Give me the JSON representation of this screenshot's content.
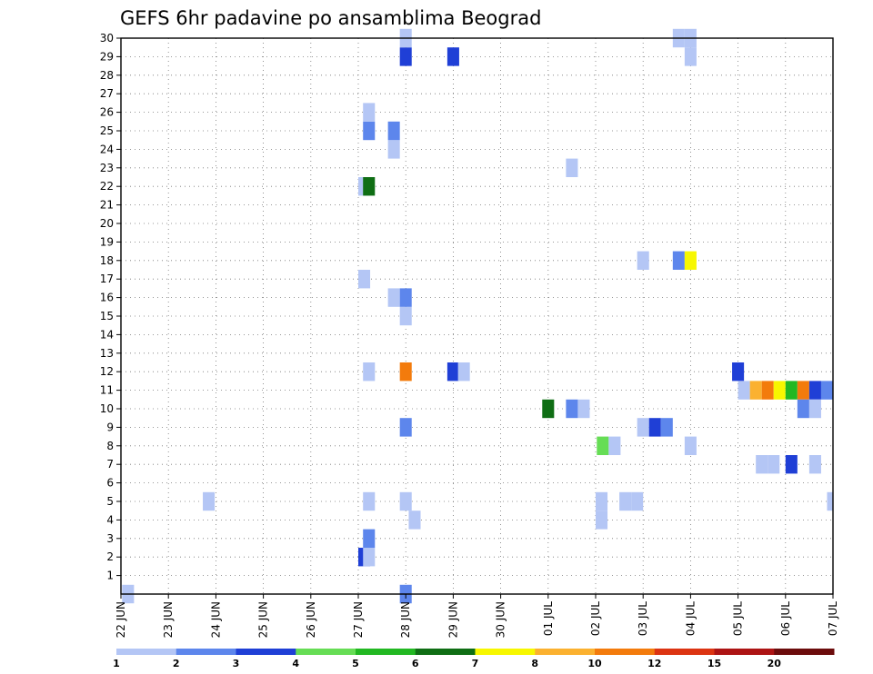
{
  "chart_data": {
    "type": "heatmap",
    "title": "GEFS 6hr padavine po ansamblima Beograd",
    "xlabel": "",
    "ylabel": "",
    "x_tick_labels": [
      "22 JUN",
      "23 JUN",
      "24 JUN",
      "25 JUN",
      "26 JUN",
      "27 JUN",
      "28 JUN",
      "29 JUN",
      "30 JUN",
      "01 JUL",
      "02 JUL",
      "03 JUL",
      "04 JUL",
      "05 JUL",
      "06 JUL",
      "07 JUL"
    ],
    "y_tick_labels": [
      "1",
      "2",
      "3",
      "4",
      "5",
      "6",
      "7",
      "8",
      "9",
      "10",
      "11",
      "12",
      "13",
      "14",
      "15",
      "16",
      "17",
      "18",
      "19",
      "20",
      "21",
      "22",
      "23",
      "24",
      "25",
      "26",
      "27",
      "28",
      "29",
      "30"
    ],
    "ylim": [
      0,
      30
    ],
    "time_step_hours": 6,
    "steps_per_day": 4,
    "grid": "dotted",
    "legend": {
      "position": "bottom",
      "bounds": [
        "1",
        "2",
        "3",
        "4",
        "5",
        "6",
        "7",
        "8",
        "10",
        "12",
        "15",
        "20"
      ],
      "bound_values": [
        1,
        2,
        3,
        4,
        5,
        6,
        7,
        8,
        10,
        12,
        15,
        20
      ],
      "colors": [
        "#b4c6f5",
        "#5d86ec",
        "#1f3fd6",
        "#66dd55",
        "#22b822",
        "#0f6e14",
        "#f7f700",
        "#fbb130",
        "#f37b0c",
        "#dc3412",
        "#ad1414",
        "#6c0c0c"
      ]
    },
    "points": [
      {
        "day": "22 JUN",
        "step": 0.1,
        "member": 0,
        "value": 1.5
      },
      {
        "day": "23 JUN",
        "step": 2.9,
        "member": 5,
        "value": 1.5
      },
      {
        "day": "27 JUN",
        "step": 0.0,
        "member": 2,
        "value": 3.5
      },
      {
        "day": "27 JUN",
        "step": 0.4,
        "member": 2,
        "value": 1.5
      },
      {
        "day": "27 JUN",
        "step": 0.4,
        "member": 3,
        "value": 2.5
      },
      {
        "day": "27 JUN",
        "step": 0.4,
        "member": 5,
        "value": 1.5
      },
      {
        "day": "27 JUN",
        "step": 0.0,
        "member": 17,
        "value": 1.5
      },
      {
        "day": "27 JUN",
        "step": 0.0,
        "member": 22,
        "value": 1.5
      },
      {
        "day": "27 JUN",
        "step": 0.4,
        "member": 22,
        "value": 6.5
      },
      {
        "day": "27 JUN",
        "step": 0.4,
        "member": 25,
        "value": 2.5
      },
      {
        "day": "27 JUN",
        "step": 0.4,
        "member": 26,
        "value": 1.5
      },
      {
        "day": "27 JUN",
        "step": 0.4,
        "member": 12,
        "value": 1.5
      },
      {
        "day": "27 JUN",
        "step": 2.5,
        "member": 16,
        "value": 1.5
      },
      {
        "day": "27 JUN",
        "step": 2.5,
        "member": 24,
        "value": 1.5
      },
      {
        "day": "27 JUN",
        "step": 2.5,
        "member": 25,
        "value": 2.5
      },
      {
        "day": "27 JUN",
        "step": 3.5,
        "member": 0,
        "value": 2.5
      },
      {
        "day": "27 JUN",
        "step": 3.5,
        "member": 5,
        "value": 1.5
      },
      {
        "day": "27 JUN",
        "step": 3.5,
        "member": 9,
        "value": 2.5
      },
      {
        "day": "27 JUN",
        "step": 3.5,
        "member": 12,
        "value": 11.0
      },
      {
        "day": "27 JUN",
        "step": 3.5,
        "member": 15,
        "value": 1.5
      },
      {
        "day": "27 JUN",
        "step": 3.5,
        "member": 16,
        "value": 2.5
      },
      {
        "day": "27 JUN",
        "step": 3.5,
        "member": 29,
        "value": 3.5
      },
      {
        "day": "27 JUN",
        "step": 3.5,
        "member": 30,
        "value": 1.5
      },
      {
        "day": "28 JUN",
        "step": 0.25,
        "member": 4,
        "value": 1.5
      },
      {
        "day": "28 JUN",
        "step": 3.5,
        "member": 12,
        "value": 3.5
      },
      {
        "day": "28 JUN",
        "step": 3.5,
        "member": 29,
        "value": 3.5
      },
      {
        "day": "29 JUN",
        "step": 0.4,
        "member": 12,
        "value": 1.5
      },
      {
        "day": "30 JUN",
        "step": 3.5,
        "member": 10,
        "value": 6.5
      },
      {
        "day": "01 JUL",
        "step": 1.5,
        "member": 10,
        "value": 2.5
      },
      {
        "day": "01 JUL",
        "step": 2.5,
        "member": 10,
        "value": 1.5
      },
      {
        "day": "01 JUL",
        "step": 1.5,
        "member": 23,
        "value": 1.5
      },
      {
        "day": "02 JUL",
        "step": 0.0,
        "member": 4,
        "value": 1.5
      },
      {
        "day": "02 JUL",
        "step": 0.0,
        "member": 5,
        "value": 1.5
      },
      {
        "day": "02 JUL",
        "step": 0.1,
        "member": 8,
        "value": 4.5
      },
      {
        "day": "02 JUL",
        "step": 1.1,
        "member": 8,
        "value": 1.5
      },
      {
        "day": "02 JUL",
        "step": 2.0,
        "member": 5,
        "value": 1.5
      },
      {
        "day": "02 JUL",
        "step": 3.0,
        "member": 5,
        "value": 1.5
      },
      {
        "day": "02 JUL",
        "step": 3.5,
        "member": 9,
        "value": 1.5
      },
      {
        "day": "02 JUL",
        "step": 3.5,
        "member": 18,
        "value": 1.5
      },
      {
        "day": "03 JUL",
        "step": 0.5,
        "member": 9,
        "value": 3.5
      },
      {
        "day": "03 JUL",
        "step": 1.5,
        "member": 9,
        "value": 2.5
      },
      {
        "day": "03 JUL",
        "step": 2.5,
        "member": 18,
        "value": 2.5
      },
      {
        "day": "03 JUL",
        "step": 3.5,
        "member": 18,
        "value": 7.5
      },
      {
        "day": "03 JUL",
        "step": 3.5,
        "member": 8,
        "value": 1.5
      },
      {
        "day": "03 JUL",
        "step": 2.5,
        "member": 30,
        "value": 1.5
      },
      {
        "day": "03 JUL",
        "step": 3.5,
        "member": 30,
        "value": 1.5
      },
      {
        "day": "03 JUL",
        "step": 3.5,
        "member": 29,
        "value": 1.5
      },
      {
        "day": "04 JUL",
        "step": 3.5,
        "member": 12,
        "value": 3.5
      },
      {
        "day": "05 JUL",
        "step": 0.0,
        "member": 11,
        "value": 1.5
      },
      {
        "day": "05 JUL",
        "step": 1.0,
        "member": 11,
        "value": 9.0
      },
      {
        "day": "05 JUL",
        "step": 2.0,
        "member": 11,
        "value": 11.0
      },
      {
        "day": "05 JUL",
        "step": 3.0,
        "member": 11,
        "value": 7.5
      },
      {
        "day": "05 JUL",
        "step": 1.5,
        "member": 7,
        "value": 1.5
      },
      {
        "day": "05 JUL",
        "step": 2.5,
        "member": 7,
        "value": 1.5
      },
      {
        "day": "06 JUL",
        "step": 0.0,
        "member": 11,
        "value": 5.5
      },
      {
        "day": "06 JUL",
        "step": 1.0,
        "member": 11,
        "value": 11.0
      },
      {
        "day": "06 JUL",
        "step": 2.0,
        "member": 11,
        "value": 3.5
      },
      {
        "day": "06 JUL",
        "step": 3.0,
        "member": 11,
        "value": 2.5
      },
      {
        "day": "06 JUL",
        "step": 0.0,
        "member": 7,
        "value": 3.5
      },
      {
        "day": "06 JUL",
        "step": 1.0,
        "member": 10,
        "value": 2.5
      },
      {
        "day": "06 JUL",
        "step": 2.0,
        "member": 10,
        "value": 1.5
      },
      {
        "day": "06 JUL",
        "step": 2.0,
        "member": 7,
        "value": 1.5
      },
      {
        "day": "06 JUL",
        "step": 3.5,
        "member": 5,
        "value": 1.5
      }
    ]
  }
}
